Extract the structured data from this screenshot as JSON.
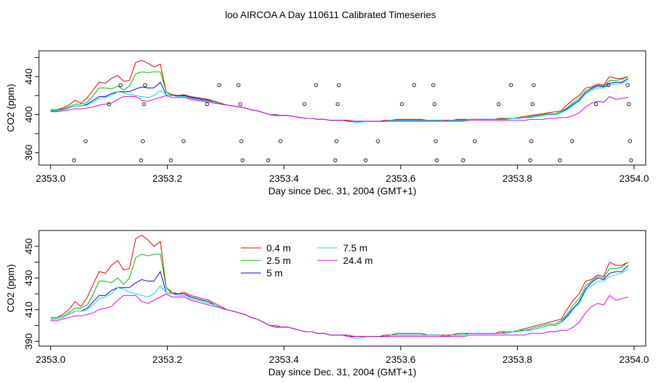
{
  "title": "loo AIRCOA A  Day 110611  Calibrated Timeseries",
  "colors": {
    "red": "#dd0000",
    "green": "#00b400",
    "blue": "#0000cc",
    "cyan": "#00d8d8",
    "magenta": "#dd00dd"
  },
  "chart_data": [
    {
      "type": "line",
      "id": "top",
      "ylabel": "CO2 (ppm)",
      "xlabel": "Day since Dec. 31, 2004 (GMT+1)",
      "xlim": [
        2352.98,
        2354.02
      ],
      "ylim": [
        347,
        467
      ],
      "xticks": [
        2353.0,
        2353.2,
        2353.4,
        2353.6,
        2353.8,
        2354.0
      ],
      "xtick_labels": [
        "2353.0",
        "2353.2",
        "2353.4",
        "2353.6",
        "2353.8",
        "2354.0"
      ],
      "yticks": [
        360,
        400,
        440
      ],
      "ytick_labels": [
        "360",
        "400",
        "440"
      ],
      "yminor": [
        380,
        420,
        460
      ],
      "series_order": [
        "0.4 m",
        "2.5 m",
        "5 m",
        "7.5 m",
        "24.4 m"
      ],
      "markers": [
        {
          "x": 2353.04,
          "y": 352
        },
        {
          "x": 2353.06,
          "y": 372
        },
        {
          "x": 2353.1,
          "y": 411
        },
        {
          "x": 2353.12,
          "y": 431
        },
        {
          "x": 2353.155,
          "y": 352
        },
        {
          "x": 2353.158,
          "y": 372
        },
        {
          "x": 2353.16,
          "y": 411
        },
        {
          "x": 2353.162,
          "y": 431
        },
        {
          "x": 2353.206,
          "y": 352
        },
        {
          "x": 2353.228,
          "y": 372
        },
        {
          "x": 2353.268,
          "y": 411
        },
        {
          "x": 2353.289,
          "y": 431
        },
        {
          "x": 2353.322,
          "y": 431
        },
        {
          "x": 2353.325,
          "y": 411
        },
        {
          "x": 2353.327,
          "y": 372
        },
        {
          "x": 2353.329,
          "y": 352
        },
        {
          "x": 2353.373,
          "y": 352
        },
        {
          "x": 2353.394,
          "y": 372
        },
        {
          "x": 2353.435,
          "y": 411
        },
        {
          "x": 2353.455,
          "y": 431
        },
        {
          "x": 2353.488,
          "y": 352
        },
        {
          "x": 2353.49,
          "y": 372
        },
        {
          "x": 2353.492,
          "y": 411
        },
        {
          "x": 2353.494,
          "y": 431
        },
        {
          "x": 2353.54,
          "y": 352
        },
        {
          "x": 2353.561,
          "y": 372
        },
        {
          "x": 2353.602,
          "y": 411
        },
        {
          "x": 2353.623,
          "y": 431
        },
        {
          "x": 2353.656,
          "y": 431
        },
        {
          "x": 2353.658,
          "y": 411
        },
        {
          "x": 2353.66,
          "y": 372
        },
        {
          "x": 2353.662,
          "y": 352
        },
        {
          "x": 2353.707,
          "y": 352
        },
        {
          "x": 2353.727,
          "y": 372
        },
        {
          "x": 2353.768,
          "y": 411
        },
        {
          "x": 2353.789,
          "y": 431
        },
        {
          "x": 2353.822,
          "y": 352
        },
        {
          "x": 2353.824,
          "y": 372
        },
        {
          "x": 2353.826,
          "y": 411
        },
        {
          "x": 2353.828,
          "y": 431
        },
        {
          "x": 2353.873,
          "y": 352
        },
        {
          "x": 2353.894,
          "y": 372
        },
        {
          "x": 2353.935,
          "y": 411
        },
        {
          "x": 2353.956,
          "y": 431
        },
        {
          "x": 2353.989,
          "y": 431
        },
        {
          "x": 2353.991,
          "y": 411
        },
        {
          "x": 2353.993,
          "y": 372
        },
        {
          "x": 2353.995,
          "y": 352
        }
      ]
    },
    {
      "type": "line",
      "id": "bottom",
      "ylabel": "CO2 (ppm)",
      "xlabel": "Day since Dec. 31, 2004 (GMT+1)",
      "xlim": [
        2352.98,
        2354.02
      ],
      "ylim": [
        387,
        460
      ],
      "xticks": [
        2353.0,
        2353.2,
        2353.4,
        2353.6,
        2353.8,
        2354.0
      ],
      "xtick_labels": [
        "2353.0",
        "2353.2",
        "2353.4",
        "2353.6",
        "2353.8",
        "2354.0"
      ],
      "yticks": [
        390,
        410,
        430,
        450
      ],
      "ytick_labels": [
        "390",
        "410",
        "430",
        "450"
      ],
      "yminor": [
        400,
        420,
        440
      ],
      "legend": [
        {
          "label": "0.4 m",
          "color": "#dd0000"
        },
        {
          "label": "2.5 m",
          "color": "#00b400"
        },
        {
          "label": "5 m",
          "color": "#0000cc"
        },
        {
          "label": "7.5 m",
          "color": "#00d8d8"
        },
        {
          "label": "24.4 m",
          "color": "#dd00dd"
        }
      ]
    }
  ],
  "series_x": [
    2353.0,
    2353.01,
    2353.021,
    2353.031,
    2353.042,
    2353.052,
    2353.063,
    2353.073,
    2353.083,
    2353.094,
    2353.104,
    2353.115,
    2353.125,
    2353.135,
    2353.146,
    2353.156,
    2353.167,
    2353.177,
    2353.188,
    2353.198,
    2353.208,
    2353.219,
    2353.229,
    2353.24,
    2353.25,
    2353.26,
    2353.271,
    2353.281,
    2353.292,
    2353.302,
    2353.313,
    2353.323,
    2353.333,
    2353.344,
    2353.354,
    2353.365,
    2353.375,
    2353.385,
    2353.396,
    2353.406,
    2353.417,
    2353.427,
    2353.438,
    2353.448,
    2353.458,
    2353.469,
    2353.479,
    2353.49,
    2353.5,
    2353.51,
    2353.521,
    2353.531,
    2353.542,
    2353.552,
    2353.563,
    2353.573,
    2353.583,
    2353.594,
    2353.604,
    2353.615,
    2353.625,
    2353.635,
    2353.646,
    2353.656,
    2353.667,
    2353.677,
    2353.688,
    2353.698,
    2353.708,
    2353.719,
    2353.729,
    2353.74,
    2353.75,
    2353.76,
    2353.771,
    2353.781,
    2353.792,
    2353.802,
    2353.813,
    2353.823,
    2353.833,
    2353.844,
    2353.854,
    2353.865,
    2353.875,
    2353.885,
    2353.896,
    2353.906,
    2353.917,
    2353.927,
    2353.938,
    2353.948,
    2353.958,
    2353.969,
    2353.979,
    2353.99
  ],
  "series": [
    {
      "name": "0.4 m",
      "color": "#dd0000",
      "values": [
        405,
        405,
        407,
        410,
        415,
        412,
        418,
        426,
        434,
        433,
        438,
        441,
        435,
        436,
        455,
        457,
        454,
        450,
        453,
        424,
        421,
        420,
        421,
        419,
        418,
        417,
        416,
        414,
        412,
        410,
        409,
        408,
        407,
        405,
        404,
        402,
        400,
        400,
        399,
        399,
        398,
        397,
        396,
        396,
        395,
        395,
        394,
        394,
        394,
        394,
        393,
        393,
        393,
        393,
        393,
        394,
        394,
        395,
        395,
        395,
        395,
        395,
        394,
        394,
        394,
        394,
        394,
        395,
        395,
        395,
        395,
        395,
        395,
        395,
        396,
        396,
        396,
        397,
        398,
        399,
        400,
        401,
        402,
        403,
        404,
        410,
        416,
        420,
        428,
        429,
        432,
        431,
        440,
        438,
        438,
        440
      ]
    },
    {
      "name": "2.5 m",
      "color": "#00b400",
      "values": [
        405,
        405,
        406,
        408,
        411,
        411,
        413,
        420,
        428,
        428,
        427,
        430,
        426,
        430,
        443,
        445,
        444,
        445,
        445,
        424,
        420,
        420,
        420,
        418,
        417,
        416,
        415,
        413,
        411,
        410,
        409,
        408,
        407,
        405,
        404,
        402,
        400,
        399,
        399,
        399,
        398,
        397,
        396,
        396,
        395,
        395,
        394,
        394,
        394,
        393,
        393,
        393,
        393,
        393,
        393,
        393,
        394,
        394,
        394,
        394,
        394,
        394,
        394,
        394,
        394,
        393,
        394,
        394,
        394,
        395,
        395,
        395,
        395,
        395,
        395,
        396,
        396,
        397,
        397,
        398,
        399,
        400,
        401,
        401,
        403,
        407,
        413,
        417,
        425,
        428,
        431,
        430,
        436,
        436,
        437,
        440
      ]
    },
    {
      "name": "5 m",
      "color": "#0000cc",
      "values": [
        404,
        404,
        405,
        407,
        409,
        409,
        411,
        415,
        419,
        419,
        422,
        424,
        424,
        424,
        427,
        429,
        428,
        428,
        434,
        421,
        420,
        420,
        420,
        418,
        417,
        416,
        415,
        413,
        411,
        410,
        409,
        408,
        407,
        405,
        404,
        402,
        400,
        399,
        399,
        399,
        398,
        397,
        396,
        396,
        395,
        395,
        394,
        394,
        394,
        393,
        393,
        393,
        393,
        393,
        393,
        393,
        394,
        394,
        394,
        394,
        394,
        394,
        394,
        394,
        394,
        393,
        394,
        394,
        394,
        395,
        395,
        395,
        395,
        395,
        395,
        395,
        396,
        396,
        397,
        397,
        398,
        399,
        400,
        400,
        402,
        406,
        411,
        415,
        423,
        427,
        430,
        429,
        433,
        434,
        434,
        438
      ]
    },
    {
      "name": "7.5 m",
      "color": "#00d8d8",
      "values": [
        404,
        404,
        405,
        407,
        409,
        409,
        410,
        413,
        417,
        418,
        420,
        424,
        423,
        421,
        420,
        419,
        418,
        420,
        425,
        421,
        420,
        419,
        419,
        417,
        416,
        415,
        414,
        413,
        411,
        410,
        409,
        408,
        407,
        405,
        404,
        402,
        400,
        399,
        399,
        399,
        398,
        397,
        396,
        396,
        395,
        395,
        394,
        394,
        394,
        393,
        392,
        392,
        393,
        393,
        393,
        393,
        394,
        394,
        394,
        394,
        394,
        394,
        394,
        394,
        394,
        393,
        394,
        394,
        394,
        395,
        395,
        395,
        395,
        395,
        395,
        395,
        396,
        396,
        397,
        397,
        398,
        399,
        400,
        400,
        402,
        405,
        410,
        414,
        422,
        425,
        428,
        428,
        431,
        432,
        433,
        436
      ]
    },
    {
      "name": "24.4 m",
      "color": "#dd00dd",
      "values": [
        403,
        403,
        404,
        405,
        406,
        406,
        407,
        408,
        410,
        411,
        412,
        416,
        419,
        419,
        419,
        415,
        414,
        416,
        418,
        420,
        418,
        418,
        418,
        416,
        415,
        414,
        413,
        412,
        411,
        410,
        409,
        408,
        407,
        405,
        404,
        402,
        400,
        399,
        399,
        399,
        398,
        397,
        396,
        396,
        395,
        395,
        394,
        394,
        394,
        393,
        393,
        393,
        393,
        393,
        393,
        393,
        393,
        393,
        393,
        393,
        393,
        393,
        393,
        393,
        393,
        393,
        393,
        393,
        393,
        394,
        394,
        394,
        394,
        394,
        394,
        394,
        394,
        394,
        394,
        395,
        395,
        395,
        396,
        396,
        397,
        397,
        399,
        402,
        408,
        412,
        414,
        413,
        419,
        416,
        417,
        418
      ]
    }
  ]
}
